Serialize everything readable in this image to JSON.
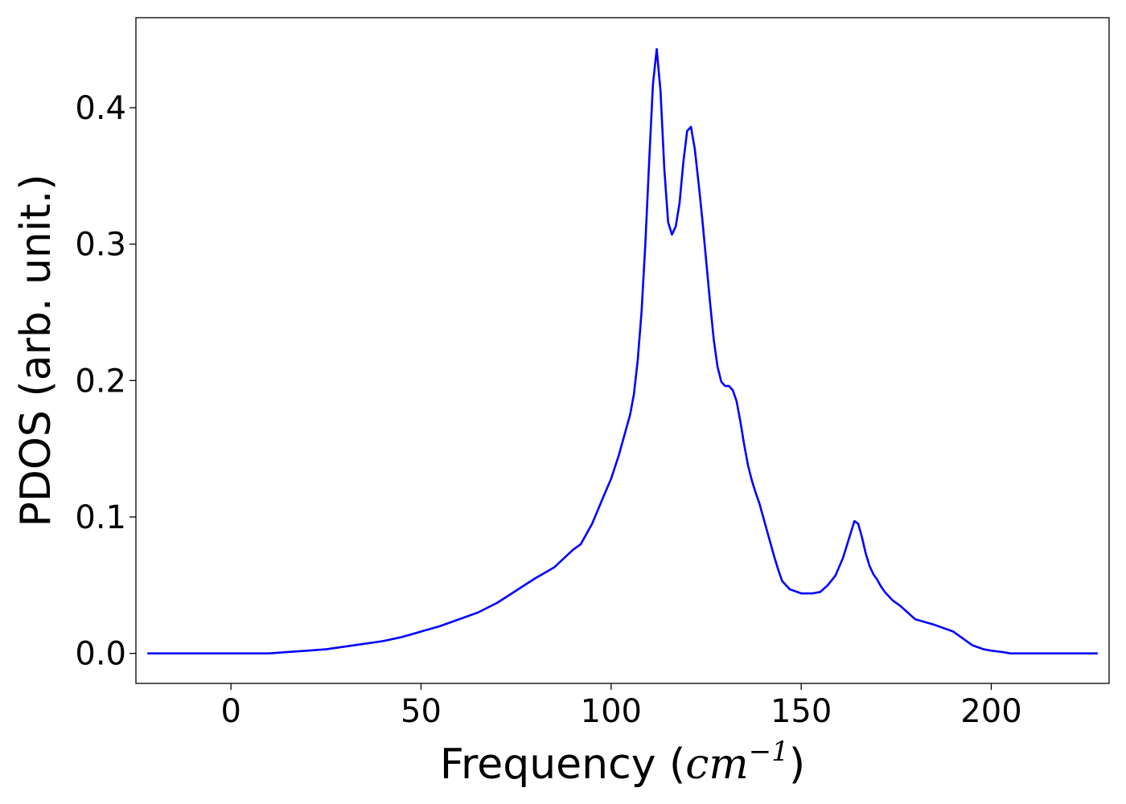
{
  "chart_data": {
    "type": "line",
    "xlabel_text": "Frequency (",
    "xlabel_unit": "cm",
    "xlabel_exp": "−1",
    "xlabel_close": ")",
    "ylabel": "PDOS (arb. unit.)",
    "xlim": [
      -25,
      231
    ],
    "ylim": [
      -0.022,
      0.466
    ],
    "xticks": [
      0,
      50,
      100,
      150,
      200
    ],
    "xtick_labels": [
      "0",
      "50",
      "100",
      "150",
      "200"
    ],
    "yticks": [
      0.0,
      0.1,
      0.2,
      0.3,
      0.4
    ],
    "ytick_labels": [
      "0.0",
      "0.1",
      "0.2",
      "0.3",
      "0.4"
    ],
    "grid": false,
    "series": [
      {
        "color": "#0000ff",
        "x": [
          -22,
          -10,
          0,
          5,
          10,
          15,
          20,
          25,
          30,
          35,
          40,
          45,
          50,
          55,
          60,
          65,
          70,
          75,
          80,
          85,
          90,
          92,
          95,
          98,
          100,
          102,
          104,
          105,
          106,
          107,
          108,
          109,
          110,
          111,
          112,
          113,
          114,
          115,
          116,
          117,
          118,
          119,
          120,
          121,
          122,
          123,
          124,
          125,
          126,
          127,
          128,
          129,
          130,
          131,
          132,
          133,
          134,
          135,
          136,
          137,
          138,
          139,
          140,
          141,
          142,
          143,
          144,
          145,
          147,
          150,
          153,
          155,
          157,
          159,
          161,
          163,
          164,
          165,
          166,
          167,
          168,
          169,
          170,
          171,
          172,
          173,
          174,
          175,
          176,
          178,
          180,
          185,
          190,
          193,
          195,
          198,
          200,
          203,
          205,
          207,
          208,
          209,
          210,
          211,
          212,
          215,
          220,
          228
        ],
        "y": [
          0.0,
          0.0,
          0.0,
          0.0,
          0.0,
          0.001,
          0.002,
          0.003,
          0.005,
          0.007,
          0.009,
          0.012,
          0.016,
          0.02,
          0.025,
          0.03,
          0.037,
          0.046,
          0.055,
          0.063,
          0.076,
          0.08,
          0.095,
          0.115,
          0.128,
          0.145,
          0.165,
          0.175,
          0.19,
          0.215,
          0.25,
          0.3,
          0.36,
          0.417,
          0.443,
          0.412,
          0.355,
          0.316,
          0.307,
          0.313,
          0.33,
          0.36,
          0.383,
          0.386,
          0.37,
          0.345,
          0.318,
          0.288,
          0.258,
          0.23,
          0.21,
          0.199,
          0.196,
          0.196,
          0.193,
          0.185,
          0.17,
          0.153,
          0.138,
          0.127,
          0.118,
          0.11,
          0.1,
          0.09,
          0.08,
          0.07,
          0.061,
          0.053,
          0.047,
          0.044,
          0.044,
          0.045,
          0.05,
          0.057,
          0.07,
          0.088,
          0.097,
          0.095,
          0.085,
          0.073,
          0.064,
          0.058,
          0.054,
          0.049,
          0.045,
          0.042,
          0.039,
          0.037,
          0.035,
          0.03,
          0.025,
          0.021,
          0.016,
          0.01,
          0.006,
          0.003,
          0.002,
          0.001,
          0.0,
          0.0,
          0.0,
          0.0,
          0.0,
          0.0,
          0.0,
          0.0,
          0.0,
          0.0
        ]
      }
    ]
  }
}
